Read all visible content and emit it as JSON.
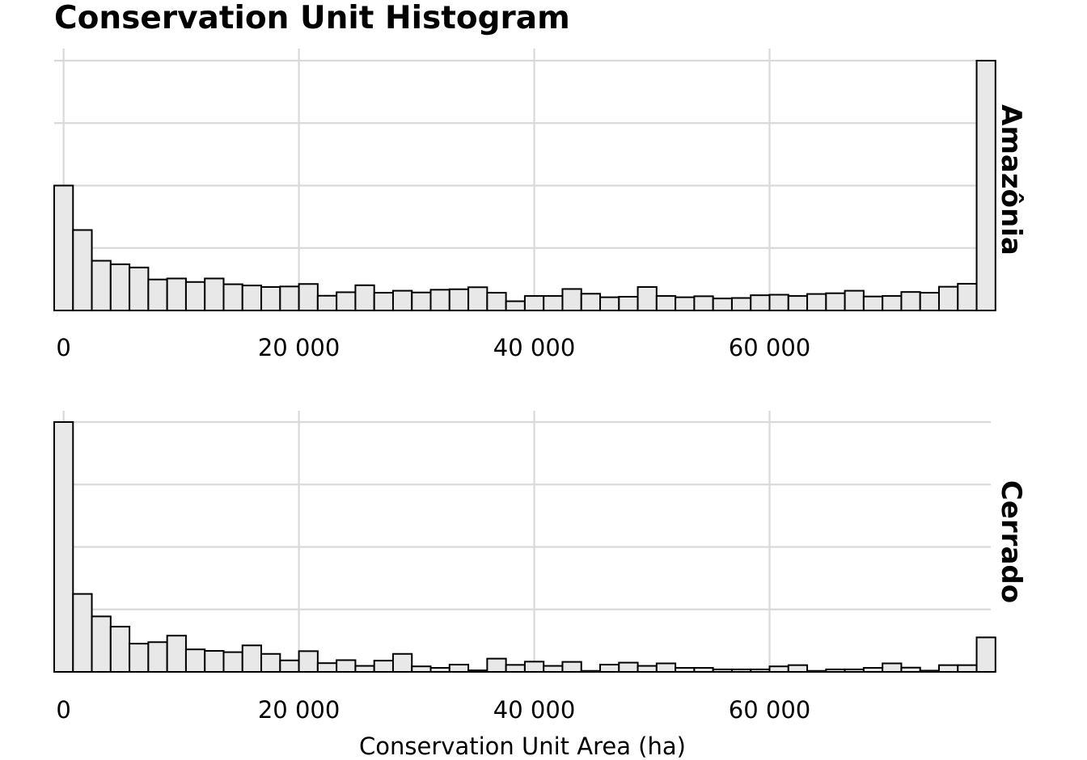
{
  "colors": {
    "bar_fill": "#e8e8e8",
    "bar_stroke": "#000000",
    "grid": "#d9d9d9",
    "background": "#ffffff"
  },
  "chart_data": {
    "type": "histogram",
    "title": "Conservation Unit Histogram",
    "xlabel": "Conservation Unit Area (ha)",
    "ylabel": "",
    "facet_layout": "rows",
    "grid": true,
    "y_tick_labels": false,
    "xlim": [
      -800,
      78800
    ],
    "bin_width": 1600,
    "x_ticks": [
      0,
      20000,
      40000,
      60000
    ],
    "x_tick_labels": [
      "0",
      "20 000",
      "40 000",
      "60 000"
    ],
    "bin_lefts": [
      -800,
      800,
      2400,
      4000,
      5600,
      7200,
      8800,
      10400,
      12000,
      13600,
      15200,
      16800,
      18400,
      20000,
      21600,
      23200,
      24800,
      26400,
      28000,
      29600,
      31200,
      32800,
      34400,
      36000,
      37600,
      39200,
      40800,
      42400,
      44000,
      45600,
      47200,
      48800,
      50400,
      52000,
      53600,
      55200,
      56800,
      58400,
      60000,
      61600,
      63200,
      64800,
      66400,
      68000,
      69600,
      71200,
      72800,
      74400,
      76000,
      77600
    ],
    "series": [
      {
        "name": "Amazônia",
        "ylim": [
          0,
          1.0
        ],
        "values": [
          0.5,
          0.322,
          0.199,
          0.185,
          0.172,
          0.124,
          0.128,
          0.114,
          0.128,
          0.105,
          0.1,
          0.094,
          0.096,
          0.106,
          0.059,
          0.073,
          0.101,
          0.071,
          0.079,
          0.072,
          0.083,
          0.085,
          0.093,
          0.071,
          0.037,
          0.058,
          0.058,
          0.086,
          0.067,
          0.053,
          0.055,
          0.094,
          0.058,
          0.053,
          0.057,
          0.048,
          0.05,
          0.061,
          0.063,
          0.058,
          0.066,
          0.069,
          0.079,
          0.056,
          0.058,
          0.074,
          0.071,
          0.095,
          0.107,
          1.0
        ]
      },
      {
        "name": "Cerrado",
        "ylim": [
          0,
          1.0
        ],
        "values": [
          1.0,
          0.312,
          0.222,
          0.181,
          0.113,
          0.119,
          0.145,
          0.09,
          0.084,
          0.079,
          0.106,
          0.072,
          0.046,
          0.083,
          0.035,
          0.047,
          0.024,
          0.045,
          0.072,
          0.022,
          0.016,
          0.029,
          0.006,
          0.053,
          0.028,
          0.041,
          0.024,
          0.04,
          0.004,
          0.029,
          0.037,
          0.024,
          0.034,
          0.016,
          0.016,
          0.01,
          0.01,
          0.01,
          0.022,
          0.027,
          0.004,
          0.01,
          0.01,
          0.016,
          0.034,
          0.017,
          0.005,
          0.027,
          0.027,
          0.138
        ]
      }
    ]
  }
}
